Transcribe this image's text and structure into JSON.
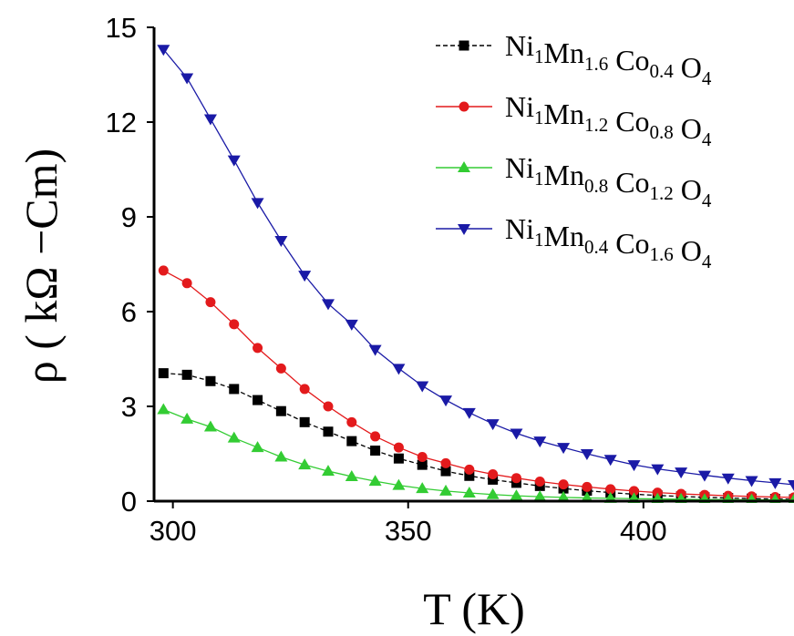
{
  "chart_data": {
    "type": "line",
    "xlabel": "T (K)",
    "ylabel": "ρ ( kΩ −Cm)",
    "xlim": [
      296,
      432
    ],
    "ylim": [
      0,
      15
    ],
    "xticks": [
      300,
      350,
      400
    ],
    "yticks": [
      0,
      3,
      6,
      9,
      12,
      15
    ],
    "legend_position": "top-right",
    "grid": false,
    "series": [
      {
        "name": "Ni1Mn1.6 Co0.4 O4",
        "name_parts": [
          [
            "Ni",
            "1"
          ],
          [
            "Mn",
            "1.6"
          ],
          [
            " Co",
            "0.4"
          ],
          [
            " O",
            "4"
          ]
        ],
        "color": "#000000",
        "marker": "square",
        "dash": true,
        "x": [
          298,
          303,
          308,
          313,
          318,
          323,
          328,
          333,
          338,
          343,
          348,
          353,
          358,
          363,
          368,
          373,
          378,
          383,
          388,
          393,
          398,
          403,
          408,
          413,
          418,
          423,
          428,
          432
        ],
        "y": [
          4.05,
          4.0,
          3.8,
          3.55,
          3.2,
          2.85,
          2.5,
          2.2,
          1.9,
          1.6,
          1.35,
          1.15,
          0.95,
          0.8,
          0.68,
          0.58,
          0.48,
          0.4,
          0.33,
          0.27,
          0.22,
          0.18,
          0.15,
          0.12,
          0.1,
          0.08,
          0.07,
          0.06
        ]
      },
      {
        "name": "Ni1Mn1.2 Co0.8 O4",
        "name_parts": [
          [
            "Ni",
            "1"
          ],
          [
            "Mn",
            "1.2"
          ],
          [
            " Co",
            "0.8"
          ],
          [
            " O",
            "4"
          ]
        ],
        "color": "#e31a1c",
        "marker": "circle",
        "dash": false,
        "x": [
          298,
          303,
          308,
          313,
          318,
          323,
          328,
          333,
          338,
          343,
          348,
          353,
          358,
          363,
          368,
          373,
          378,
          383,
          388,
          393,
          398,
          403,
          408,
          413,
          418,
          423,
          428,
          432
        ],
        "y": [
          7.3,
          6.9,
          6.3,
          5.6,
          4.85,
          4.2,
          3.55,
          3.0,
          2.5,
          2.05,
          1.7,
          1.4,
          1.2,
          1.0,
          0.85,
          0.73,
          0.62,
          0.53,
          0.45,
          0.38,
          0.32,
          0.27,
          0.23,
          0.2,
          0.17,
          0.15,
          0.13,
          0.12
        ]
      },
      {
        "name": "Ni1Mn0.8 Co1.2 O4",
        "name_parts": [
          [
            "Ni",
            "1"
          ],
          [
            "Mn",
            "0.8"
          ],
          [
            " Co",
            "1.2"
          ],
          [
            " O",
            "4"
          ]
        ],
        "color": "#33cc33",
        "marker": "triangle-up",
        "dash": false,
        "x": [
          298,
          303,
          308,
          313,
          318,
          323,
          328,
          333,
          338,
          343,
          348,
          353,
          358,
          363,
          368,
          373,
          378,
          383,
          388,
          393,
          398,
          403,
          408,
          413,
          418,
          423,
          428,
          432
        ],
        "y": [
          2.9,
          2.6,
          2.35,
          2.0,
          1.7,
          1.4,
          1.15,
          0.95,
          0.78,
          0.63,
          0.5,
          0.4,
          0.32,
          0.26,
          0.21,
          0.17,
          0.14,
          0.12,
          0.1,
          0.09,
          0.08,
          0.07,
          0.06,
          0.05,
          0.05,
          0.04,
          0.04,
          0.04
        ]
      },
      {
        "name": "Ni1Mn0.4 Co1.6 O4",
        "name_parts": [
          [
            "Ni",
            "1"
          ],
          [
            "Mn",
            "0.4"
          ],
          [
            " Co",
            "1.6"
          ],
          [
            " O",
            "4"
          ]
        ],
        "color": "#1a1aa6",
        "marker": "triangle-down",
        "dash": false,
        "x": [
          298,
          303,
          308,
          313,
          318,
          323,
          328,
          333,
          338,
          343,
          348,
          353,
          358,
          363,
          368,
          373,
          378,
          383,
          388,
          393,
          398,
          403,
          408,
          413,
          418,
          423,
          428,
          432
        ],
        "y": [
          14.3,
          13.4,
          12.1,
          10.8,
          9.45,
          8.25,
          7.15,
          6.25,
          5.6,
          4.8,
          4.2,
          3.65,
          3.2,
          2.8,
          2.45,
          2.15,
          1.9,
          1.7,
          1.5,
          1.32,
          1.15,
          1.02,
          0.92,
          0.82,
          0.73,
          0.65,
          0.58,
          0.52
        ]
      }
    ]
  }
}
